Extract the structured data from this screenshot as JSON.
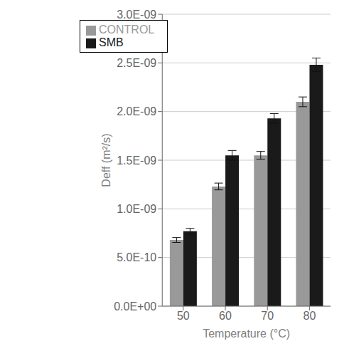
{
  "chart_data": {
    "type": "bar",
    "xlabel": "Temperature (°C)",
    "ylabel": "Deff (m²/s)",
    "categories": [
      "50",
      "60",
      "70",
      "80"
    ],
    "series": [
      {
        "name": "CONTROL",
        "color": "#999999",
        "values": [
          6.8e-10,
          1.23e-09,
          1.55e-09,
          2.1e-09
        ],
        "errors": [
          2.5e-11,
          3.5e-11,
          4e-11,
          5e-11
        ]
      },
      {
        "name": "SMB",
        "color": "#1a1a1a",
        "values": [
          7.7e-10,
          1.55e-09,
          1.93e-09,
          2.48e-09
        ],
        "errors": [
          3e-11,
          5e-11,
          5e-11,
          7e-11
        ]
      }
    ],
    "ylim": [
      0,
      3e-09
    ],
    "yticks": [
      {
        "value": 0,
        "label": "0.0E+00"
      },
      {
        "value": 5e-10,
        "label": "5.0E-10"
      },
      {
        "value": 1e-09,
        "label": "1.0E-09"
      },
      {
        "value": 1.5e-09,
        "label": "1.5E-09"
      },
      {
        "value": 2e-09,
        "label": "2.0E-09"
      },
      {
        "value": 2.5e-09,
        "label": "2.5E-09"
      },
      {
        "value": 3e-09,
        "label": "3.0E-09"
      }
    ],
    "grid": true,
    "legend": "upper left"
  }
}
